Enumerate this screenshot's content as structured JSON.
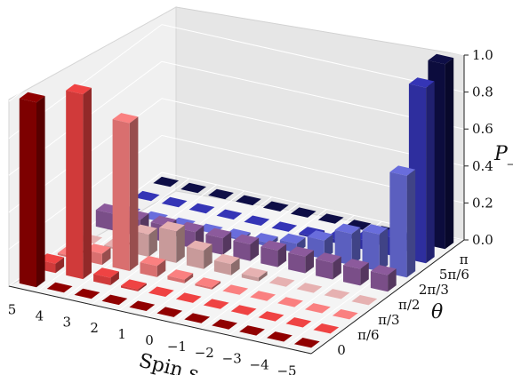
{
  "chart_data": {
    "type": "bar3d",
    "title": "",
    "xlabel": "Spin s",
    "ylabel": "θ",
    "zlabel": "P_s",
    "x_categories": [
      "5",
      "4",
      "3",
      "2",
      "1",
      "0",
      "−1",
      "−2",
      "−3",
      "−4",
      "−5"
    ],
    "y_ticks": [
      "0",
      "π/6",
      "π/3",
      "π/2",
      "2π/3",
      "5π/6",
      "π"
    ],
    "z_ticks": [
      "0.0",
      "0.2",
      "0.4",
      "0.6",
      "0.8",
      "1.0"
    ],
    "zlim": [
      0,
      1.0
    ],
    "grid": true,
    "series": [
      {
        "theta": "0",
        "color": "#7d0000",
        "values": [
          1.0,
          0,
          0,
          0,
          0,
          0,
          0,
          0,
          0,
          0,
          0
        ]
      },
      {
        "theta": "π/6",
        "color": "#d03a3a",
        "values": [
          0.05,
          1.0,
          0.04,
          0.01,
          0,
          0,
          0,
          0,
          0,
          0,
          0
        ]
      },
      {
        "theta": "π/3",
        "color": "#d96f6f",
        "values": [
          0.01,
          0.06,
          0.8,
          0.06,
          0.02,
          0.01,
          0,
          0,
          0,
          0,
          0
        ]
      },
      {
        "theta": "π/2",
        "color": "#c89a9a",
        "values": [
          0,
          0.01,
          0.12,
          0.17,
          0.1,
          0.06,
          0.02,
          0,
          0,
          0,
          0
        ]
      },
      {
        "theta": "π/2",
        "color": "#7a4e88",
        "values": [
          0.09,
          0.09,
          0.09,
          0.09,
          0.09,
          0.09,
          0.09,
          0.09,
          0.09,
          0.09,
          0.09
        ]
      },
      {
        "theta": "2π/3",
        "color": "#5b5fbf",
        "values": [
          0,
          0,
          0,
          0,
          0.01,
          0.02,
          0.05,
          0.1,
          0.17,
          0.2,
          0.55
        ]
      },
      {
        "theta": "5π/6",
        "color": "#2e2e9e",
        "values": [
          0,
          0,
          0,
          0,
          0,
          0,
          0.01,
          0.02,
          0.05,
          0.1,
          0.95
        ]
      },
      {
        "theta": "π",
        "color": "#0c0c3d",
        "values": [
          0,
          0,
          0,
          0,
          0,
          0,
          0,
          0,
          0,
          0,
          1.0
        ]
      }
    ]
  }
}
